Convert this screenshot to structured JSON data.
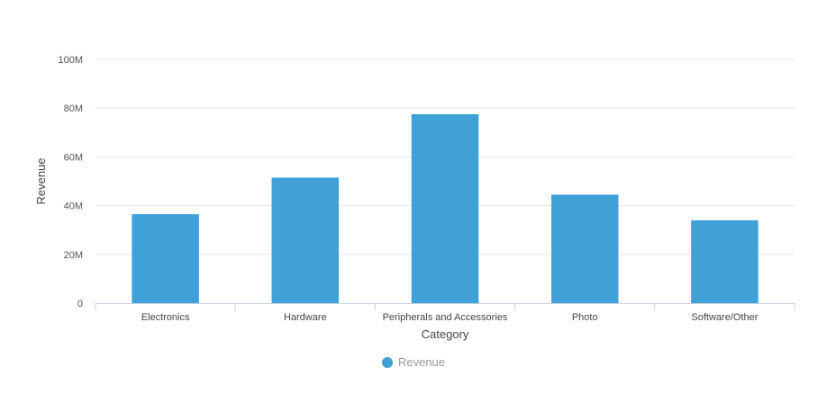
{
  "chart_data": {
    "type": "bar",
    "categories": [
      "Electronics",
      "Hardware",
      "Peripherals and Accessories",
      "Photo",
      "Software/Other"
    ],
    "series": [
      {
        "name": "Revenue",
        "values": [
          36500000,
          51500000,
          77500000,
          44500000,
          34000000
        ]
      }
    ],
    "xlabel": "Category",
    "ylabel": "Revenue",
    "ylim": [
      0,
      100000000
    ],
    "yticks": [
      0,
      20000000,
      40000000,
      60000000,
      80000000,
      100000000
    ],
    "ytick_labels": [
      "0",
      "20M",
      "40M",
      "60M",
      "80M",
      "100M"
    ],
    "grid": true,
    "legend_position": "bottom-center",
    "colors": {
      "bar": "#3fa1d6",
      "grid": "#e6e6e6",
      "axis": "#c8d0da"
    }
  }
}
